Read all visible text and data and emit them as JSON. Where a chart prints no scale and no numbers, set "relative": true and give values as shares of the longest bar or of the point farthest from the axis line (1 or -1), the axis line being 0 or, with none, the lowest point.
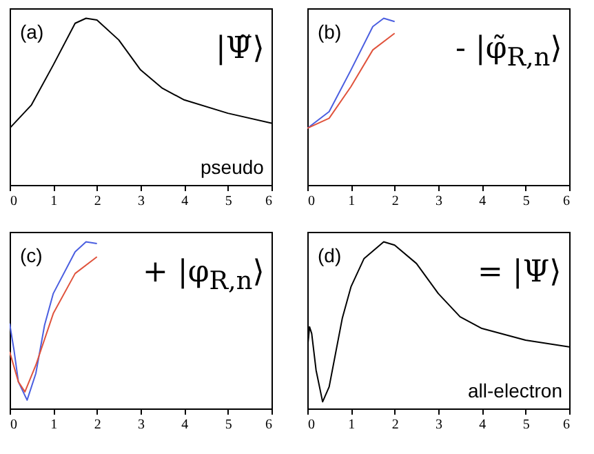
{
  "chart_data": [
    {
      "type": "line",
      "relative": true,
      "tick_labels": "x",
      "xlim": [
        0,
        6
      ],
      "xticks": [
        0,
        1,
        2,
        3,
        4,
        5,
        6
      ],
      "annotations": [
        "(a)",
        "|Ψ̃⟩",
        "pseudo"
      ],
      "series": [
        {
          "color": "#000000",
          "x": [
            0,
            0.5,
            1,
            1.5,
            1.75,
            2,
            2.5,
            3,
            3.5,
            4,
            5,
            6
          ],
          "values": [
            0.34,
            0.48,
            0.72,
            0.97,
            1,
            0.99,
            0.87,
            0.69,
            0.58,
            0.51,
            0.43,
            0.37
          ]
        }
      ]
    },
    {
      "type": "line",
      "relative": true,
      "tick_labels": "x",
      "xlim": [
        0,
        6
      ],
      "xticks": [
        0,
        1,
        2,
        3,
        4,
        5,
        6
      ],
      "annotations": [
        "(b)",
        "- |φ̃$_{R,n}$⟩"
      ],
      "series": [
        {
          "color": "#4a5ee0",
          "x": [
            0,
            0.5,
            1,
            1.5,
            1.75,
            2
          ],
          "values": [
            0.34,
            0.44,
            0.69,
            0.95,
            1,
            0.98
          ]
        },
        {
          "color": "#e0533c",
          "x": [
            0,
            0.5,
            1,
            1.5,
            2
          ],
          "values": [
            0.34,
            0.4,
            0.59,
            0.81,
            0.91
          ]
        }
      ]
    },
    {
      "type": "line",
      "relative": true,
      "tick_labels": "x",
      "xlim": [
        0,
        6
      ],
      "xticks": [
        0,
        1,
        2,
        3,
        4,
        5,
        6
      ],
      "annotations": [
        "(c)",
        "+ |φ$_{R,n}$⟩"
      ],
      "series": [
        {
          "color": "#4a5ee0",
          "x": [
            0,
            0.1,
            0.2,
            0.4,
            0.6,
            0.8,
            1,
            1.5,
            1.75,
            2
          ],
          "values": [
            0.51,
            0.35,
            0.16,
            0.05,
            0.21,
            0.5,
            0.69,
            0.94,
            1,
            0.99
          ]
        },
        {
          "color": "#e0533c",
          "x": [
            0,
            0.2,
            0.35,
            0.6,
            1,
            1.5,
            2
          ],
          "values": [
            0.34,
            0.16,
            0.1,
            0.26,
            0.57,
            0.81,
            0.91
          ]
        }
      ]
    },
    {
      "type": "line",
      "relative": true,
      "tick_labels": "x",
      "xlim": [
        0,
        6
      ],
      "xticks": [
        0,
        1,
        2,
        3,
        4,
        5,
        6
      ],
      "annotations": [
        "(d)",
        "= |Ψ⟩",
        "all-electron"
      ],
      "series": [
        {
          "color": "#000000",
          "x": [
            0,
            0.05,
            0.1,
            0.2,
            0.35,
            0.5,
            0.8,
            1,
            1.3,
            1.75,
            2,
            2.5,
            3,
            3.5,
            4,
            5,
            6
          ],
          "values": [
            0.35,
            0.49,
            0.45,
            0.23,
            0.04,
            0.13,
            0.54,
            0.73,
            0.9,
            1,
            0.98,
            0.87,
            0.69,
            0.55,
            0.48,
            0.41,
            0.37
          ]
        }
      ]
    }
  ]
}
